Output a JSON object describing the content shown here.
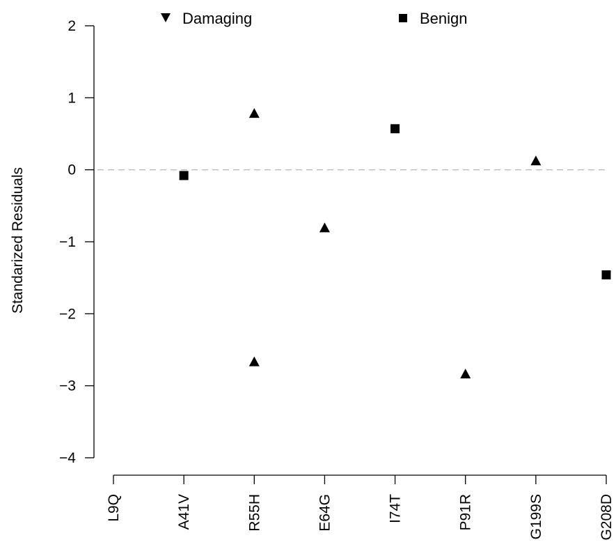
{
  "chart_data": {
    "type": "scatter",
    "title": "",
    "xlabel": "",
    "ylabel": "Standarized Residuals",
    "categories": [
      "L9Q",
      "A41V",
      "R55H",
      "E64G",
      "I74T",
      "P91R",
      "G199S",
      "G208D"
    ],
    "ylim": [
      -4,
      2
    ],
    "yticks": [
      2,
      1,
      0,
      -1,
      -2,
      -3,
      -4
    ],
    "reference_line": {
      "y": 0,
      "style": "dashed",
      "color": "#bdbdbd"
    },
    "legend": {
      "placement": "top",
      "entries": [
        {
          "label": "Damaging",
          "marker": "triangle"
        },
        {
          "label": "Benign",
          "marker": "square"
        }
      ]
    },
    "series": [
      {
        "name": "Damaging",
        "marker": "triangle",
        "points": [
          {
            "x": "R55H",
            "y": 0.78
          },
          {
            "x": "R55H",
            "y": -2.67
          },
          {
            "x": "E64G",
            "y": -0.81
          },
          {
            "x": "P91R",
            "y": -2.84
          },
          {
            "x": "G199S",
            "y": 0.12
          }
        ]
      },
      {
        "name": "Benign",
        "marker": "square",
        "points": [
          {
            "x": "A41V",
            "y": -0.08
          },
          {
            "x": "I74T",
            "y": 0.57
          },
          {
            "x": "G208D",
            "y": -1.46
          }
        ]
      }
    ],
    "grid": false
  }
}
